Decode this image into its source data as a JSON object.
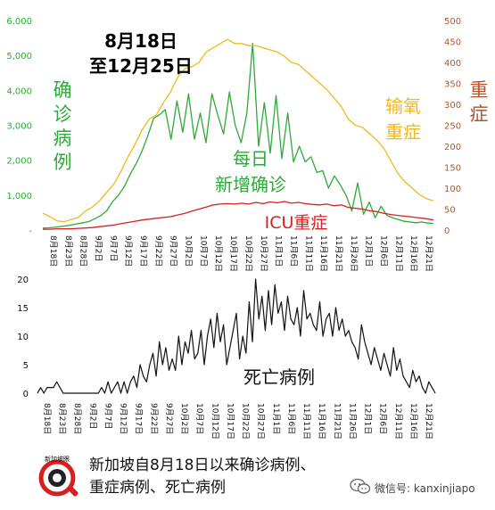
{
  "chart_data": [
    {
      "type": "line",
      "title": "8月18日\n至12月25日",
      "y_left_label": "确诊病例",
      "y_right_label": "重症",
      "ylim_left": [
        0,
        6000
      ],
      "ylim_right": [
        0,
        500
      ],
      "yticks_left": [
        "-",
        "1,000",
        "2,000",
        "3,000",
        "4,000",
        "5,000",
        "6,000"
      ],
      "yticks_right": [
        "0",
        "50",
        "100",
        "150",
        "200",
        "250",
        "300",
        "350",
        "400",
        "450",
        "500"
      ],
      "x_ticks": [
        "8月18日",
        "8月23日",
        "8月28日",
        "9月2日",
        "9月7日",
        "9月12日",
        "9月17日",
        "9月22日",
        "9月27日",
        "10月2日",
        "10月7日",
        "10月12日",
        "10月17日",
        "10月22日",
        "10月27日",
        "11月1日",
        "11月6日",
        "11月11日",
        "11月16日",
        "11月21日",
        "11月26日",
        "12月1日",
        "12月6日",
        "12月11日",
        "12月16日",
        "12月21日"
      ],
      "series": [
        {
          "name": "每日\n新增确诊",
          "axis": "left",
          "color": "#2eaa3a",
          "values": [
            55,
            65,
            80,
            100,
            120,
            150,
            180,
            210,
            250,
            330,
            420,
            560,
            820,
            1000,
            1250,
            1600,
            1900,
            2250,
            2700,
            3200,
            3300,
            3450,
            2600,
            3700,
            2800,
            3900,
            2600,
            3350,
            2500,
            3900,
            3300,
            2750,
            3950,
            3000,
            2500,
            3350,
            5350,
            2400,
            3650,
            2200,
            3850,
            2050,
            3350,
            1950,
            2400,
            1950,
            2100,
            1650,
            1700,
            1200,
            1550,
            1300,
            1000,
            550,
            1350,
            450,
            800,
            350,
            680,
            420,
            350,
            300,
            250,
            230,
            210,
            230,
            200,
            190
          ]
        },
        {
          "name": "输氧\n重症",
          "axis": "right",
          "color": "#f2b81c",
          "values": [
            40,
            32,
            22,
            20,
            25,
            30,
            45,
            55,
            70,
            90,
            110,
            140,
            175,
            205,
            240,
            265,
            275,
            305,
            330,
            365,
            385,
            390,
            400,
            425,
            435,
            445,
            455,
            445,
            445,
            440,
            440,
            435,
            430,
            425,
            415,
            400,
            395,
            380,
            365,
            350,
            335,
            315,
            295,
            265,
            250,
            245,
            230,
            215,
            195,
            165,
            135,
            115,
            100,
            85,
            75,
            70
          ]
        },
        {
          "name": "ICU重症",
          "axis": "right",
          "color": "#d61f1f",
          "values": [
            2,
            2,
            3,
            3,
            3,
            4,
            5,
            6,
            8,
            10,
            12,
            15,
            18,
            21,
            24,
            26,
            28,
            30,
            32,
            36,
            40,
            45,
            50,
            55,
            60,
            62,
            63,
            62,
            64,
            62,
            66,
            63,
            67,
            65,
            68,
            64,
            66,
            63,
            61,
            60,
            62,
            58,
            60,
            54,
            52,
            50,
            46,
            44,
            40,
            37,
            35,
            33,
            31,
            29,
            27,
            24
          ]
        }
      ]
    },
    {
      "type": "line",
      "series_label": "死亡病例",
      "ylim": [
        0,
        20
      ],
      "yticks": [
        "0",
        "5",
        "10",
        "15",
        "20"
      ],
      "x_ticks": [
        "8月18日",
        "8月23日",
        "8月28日",
        "9月2日",
        "9月7日",
        "9月12日",
        "9月17日",
        "9月22日",
        "9月27日",
        "10月2日",
        "10月7日",
        "10月12日",
        "10月17日",
        "10月22日",
        "10月27日",
        "11月1日",
        "11月6日",
        "11月11日",
        "11月16日",
        "11月21日",
        "11月26日",
        "12月1日",
        "12月6日",
        "12月11日",
        "12月16日",
        "12月21日"
      ],
      "series": [
        {
          "name": "死亡病例",
          "color": "#111111",
          "values": [
            0,
            1,
            0,
            1,
            1,
            1,
            2,
            1,
            0,
            0,
            0,
            0,
            0,
            0,
            0,
            0,
            0,
            0,
            0,
            0,
            1,
            0,
            2,
            0,
            1,
            2,
            0,
            2,
            0,
            2,
            3,
            1,
            5,
            3,
            2,
            5,
            7,
            3,
            9,
            5,
            8,
            4,
            6,
            4,
            10,
            5,
            9,
            7,
            11,
            6,
            7,
            11,
            5,
            10,
            13,
            8,
            14,
            9,
            12,
            5,
            8,
            11,
            14,
            6,
            10,
            7,
            16,
            9,
            20,
            13,
            17,
            11,
            18,
            12,
            19,
            14,
            16,
            11,
            17,
            13,
            12,
            15,
            10,
            18,
            13,
            14,
            12,
            11,
            16,
            10,
            13,
            14,
            10,
            15,
            11,
            13,
            10,
            11,
            9,
            8,
            6,
            12,
            9,
            7,
            5,
            8,
            6,
            4,
            7,
            5,
            3,
            8,
            4,
            6,
            3,
            2,
            1,
            4,
            2,
            3,
            1,
            0,
            2,
            1,
            0
          ]
        }
      ]
    }
  ],
  "caption": {
    "line1": "新加坡自8月18日以来确诊病例、",
    "line2": "重症病例、死亡病例"
  },
  "logo": {
    "text": "新加坡眼",
    "icon": "magnifier-logo-icon",
    "color": "#d61f1f"
  },
  "wechat": {
    "icon": "wechat-icon",
    "text": "微信号: kanxinjiapo"
  }
}
